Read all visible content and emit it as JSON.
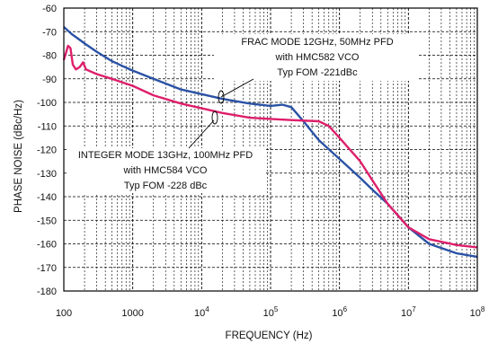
{
  "chart_data": {
    "type": "line",
    "xlabel": "FREQUENCY (Hz)",
    "ylabel": "PHASE NOISE (dBc/Hz)",
    "x_scale": "log",
    "xlim": [
      100,
      100000000
    ],
    "ylim": [
      -180,
      -60
    ],
    "grid": true,
    "x_ticks": [
      {
        "base": "100",
        "exp": ""
      },
      {
        "base": "1000",
        "exp": ""
      },
      {
        "base": "10",
        "exp": "4"
      },
      {
        "base": "10",
        "exp": "5"
      },
      {
        "base": "10",
        "exp": "6"
      },
      {
        "base": "10",
        "exp": "7"
      },
      {
        "base": "10",
        "exp": "8"
      }
    ],
    "y_ticks": [
      "-60",
      "-70",
      "-80",
      "-90",
      "-100",
      "-110",
      "-120",
      "-130",
      "-140",
      "-150",
      "-160",
      "-170",
      "-180"
    ],
    "annotations": [
      {
        "lines": [
          "FRAC MODE 12GHz, 50MHz PFD",
          "with HMC582 VCO",
          "Typ FOM -221dBc"
        ]
      },
      {
        "lines": [
          "INTEGER MODE 13GHz, 100MHz PFD",
          "with HMC584 VCO",
          "Typ FOM -228 dBc"
        ]
      }
    ],
    "series": [
      {
        "color": "#2a52a5",
        "points": [
          [
            100,
            -68
          ],
          [
            130,
            -71
          ],
          [
            170,
            -73.5
          ],
          [
            200,
            -75
          ],
          [
            300,
            -78.5
          ],
          [
            500,
            -82.5
          ],
          [
            700,
            -84.5
          ],
          [
            1000,
            -86.5
          ],
          [
            2000,
            -90
          ],
          [
            3000,
            -92
          ],
          [
            5000,
            -94.5
          ],
          [
            10000,
            -96.5
          ],
          [
            20000,
            -98.5
          ],
          [
            50000,
            -100.5
          ],
          [
            100000,
            -101.5
          ],
          [
            150000,
            -101
          ],
          [
            200000,
            -102
          ],
          [
            300000,
            -108
          ],
          [
            500000,
            -116
          ],
          [
            1000000,
            -124
          ],
          [
            2000000,
            -132
          ],
          [
            3000000,
            -137
          ],
          [
            5000000,
            -143
          ],
          [
            10000000,
            -153
          ],
          [
            20000000,
            -160
          ],
          [
            50000000,
            -164
          ],
          [
            100000000,
            -165.5
          ]
        ]
      },
      {
        "color": "#de1f6b",
        "points": [
          [
            100,
            -82
          ],
          [
            115,
            -76
          ],
          [
            125,
            -77
          ],
          [
            135,
            -84
          ],
          [
            150,
            -86
          ],
          [
            170,
            -85
          ],
          [
            190,
            -83
          ],
          [
            210,
            -86
          ],
          [
            300,
            -88
          ],
          [
            500,
            -90
          ],
          [
            1000,
            -93
          ],
          [
            2000,
            -97
          ],
          [
            5000,
            -100.5
          ],
          [
            10000,
            -102.5
          ],
          [
            20000,
            -104.5
          ],
          [
            50000,
            -106.5
          ],
          [
            100000,
            -107
          ],
          [
            200000,
            -107.5
          ],
          [
            500000,
            -108
          ],
          [
            700000,
            -110
          ],
          [
            1000000,
            -115
          ],
          [
            2000000,
            -125
          ],
          [
            3000000,
            -133
          ],
          [
            5000000,
            -143
          ],
          [
            10000000,
            -153
          ],
          [
            20000000,
            -158
          ],
          [
            50000000,
            -160.5
          ],
          [
            100000000,
            -161.5
          ]
        ]
      }
    ]
  }
}
